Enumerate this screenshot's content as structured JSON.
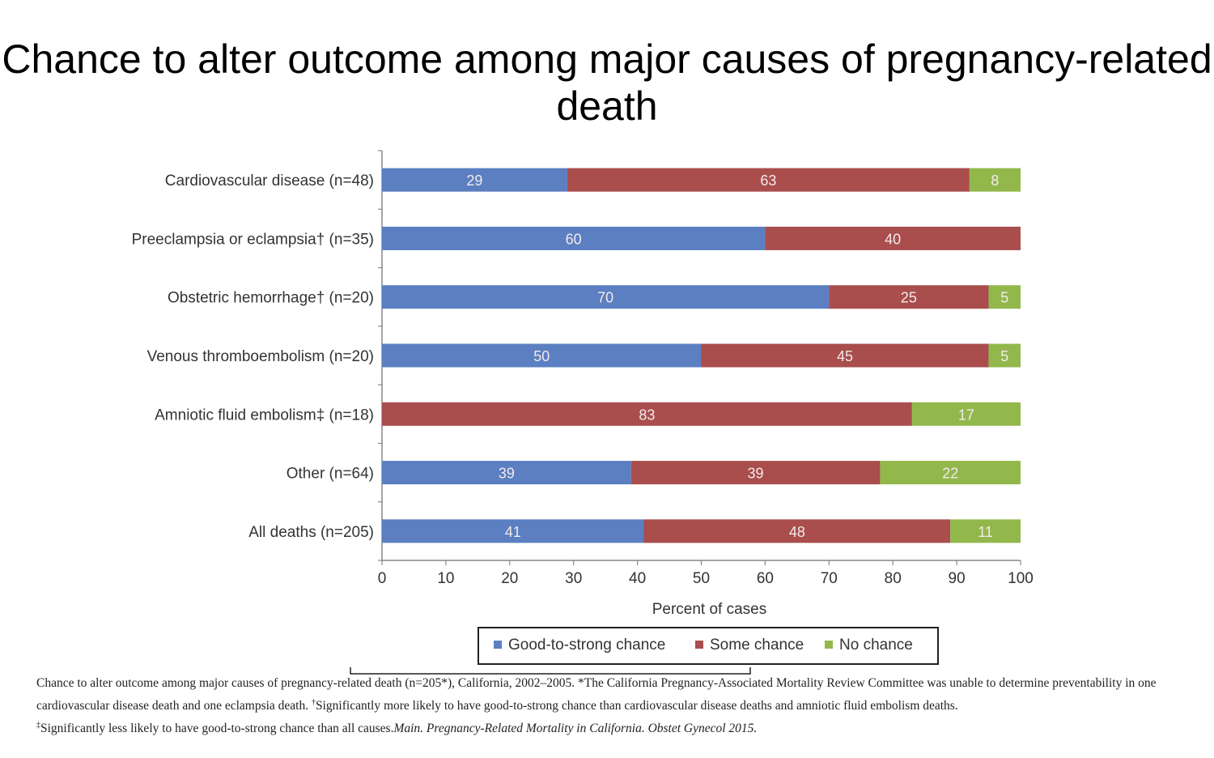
{
  "chart_data": {
    "type": "bar",
    "orientation": "horizontal",
    "stacked": true,
    "title": "Chance to alter outcome among major causes of pregnancy-related death",
    "categories": [
      "Cardiovascular disease (n=48)",
      "Preeclampsia or eclampsia† (n=35)",
      "Obstetric hemorrhage† (n=20)",
      "Venous thromboembolism (n=20)",
      "Amniotic fluid embolism‡ (n=18)",
      "Other (n=64)",
      "All deaths (n=205)"
    ],
    "series": [
      {
        "name": "Good-to-strong chance",
        "color": "#5b7fc1",
        "values": [
          29,
          60,
          70,
          50,
          0,
          39,
          41
        ]
      },
      {
        "name": "Some chance",
        "color": "#a94d4d",
        "values": [
          63,
          40,
          25,
          45,
          83,
          39,
          48
        ]
      },
      {
        "name": "No chance",
        "color": "#92b84c",
        "values": [
          8,
          0,
          5,
          5,
          17,
          22,
          11
        ]
      }
    ],
    "xlabel": "Percent of cases",
    "ylabel": "",
    "xlim": [
      0,
      100
    ],
    "xticks": [
      "0",
      "10",
      "20",
      "30",
      "40",
      "50",
      "60",
      "70",
      "80",
      "90",
      "100"
    ],
    "grid": false,
    "legend_position": "bottom"
  },
  "footnote": {
    "part1": "Chance to alter outcome among major causes of pregnancy-related death (n=205*), California, 2002–2005. *The California Pregnancy-Associated Mortality Review Committee was unable to determine preventability in one cardiovascular disease death and one eclampsia death. ",
    "dagger": "†",
    "part2": "Significantly more likely to have good-to-strong chance than cardiovascular disease deaths and amniotic fluid embolism deaths. ",
    "ddagger": "‡",
    "part3": "Significantly less likely to have good-to-strong chance than all causes.",
    "source": "Main. Pregnancy-Related Mortality in California. Obstet Gynecol 2015."
  }
}
